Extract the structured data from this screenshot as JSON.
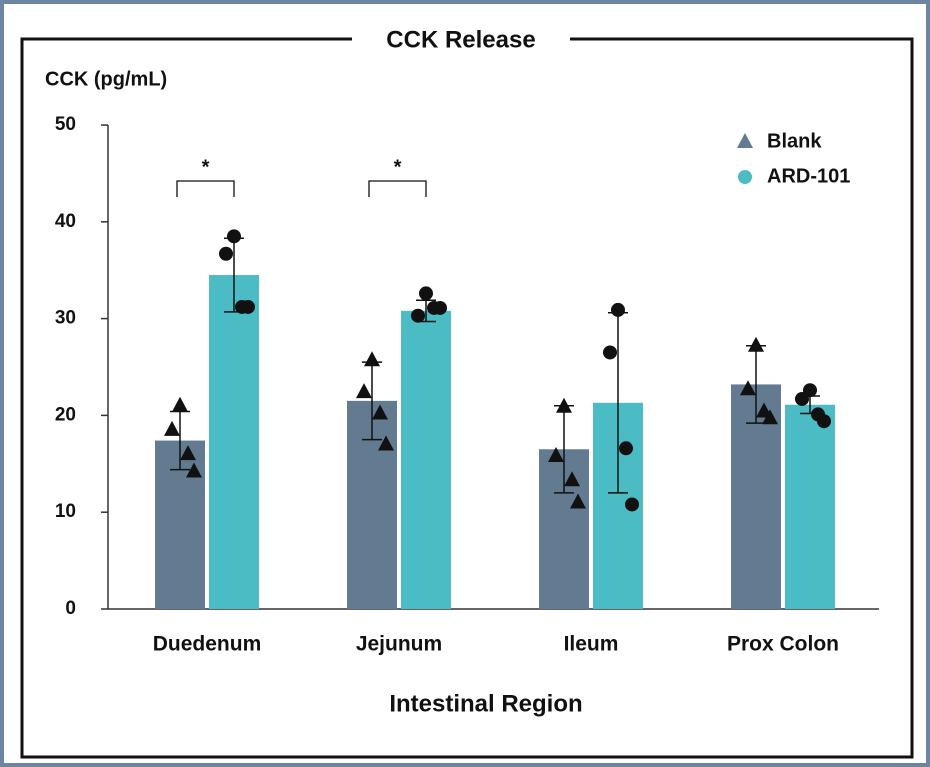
{
  "chart_data": {
    "type": "bar",
    "title": "CCK Release",
    "y_label": "CCK (pg/mL)",
    "x_label": "Intestinal Region",
    "categories": [
      "Duedenum",
      "Jejunum",
      "Ileum",
      "Prox Colon"
    ],
    "series": [
      {
        "name": "Blank",
        "color": "#627b90",
        "marker": "triangle",
        "values": [
          17.4,
          21.5,
          16.5,
          23.2
        ],
        "errors": [
          3,
          4,
          4.5,
          4
        ],
        "points": [
          [
            21,
            18.5,
            16,
            14.2
          ],
          [
            25.7,
            22.4,
            20.2,
            17
          ],
          [
            20.9,
            15.8,
            13.3,
            11
          ],
          [
            27.2,
            22.7,
            20.4,
            19.7
          ]
        ]
      },
      {
        "name": "ARD-101",
        "color": "#4bbcc4",
        "marker": "circle",
        "values": [
          34.5,
          30.8,
          21.3,
          21.1
        ],
        "errors": [
          3.8,
          1.1,
          9.3,
          0.9
        ],
        "points": [
          [
            38.5,
            36.7,
            31.2,
            31.2
          ],
          [
            32.6,
            30.3,
            31.1,
            31.1
          ],
          [
            30.9,
            26.5,
            16.6,
            10.8
          ],
          [
            22.6,
            21.7,
            20.1,
            19.4
          ]
        ]
      }
    ],
    "annotations": [
      {
        "text": "*",
        "category_index": 0
      },
      {
        "text": "*",
        "category_index": 1
      }
    ],
    "ylim": [
      0,
      50
    ],
    "yticks": [
      0,
      10,
      20,
      30,
      40,
      50
    ],
    "legend": "top-right"
  }
}
